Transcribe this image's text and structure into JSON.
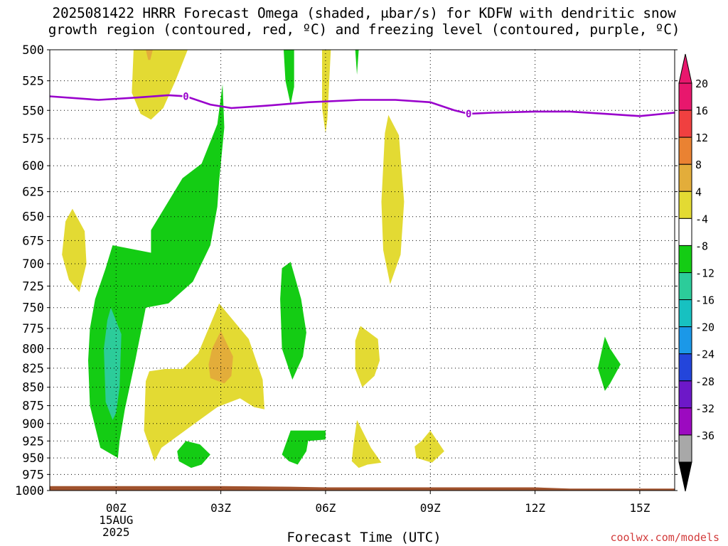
{
  "title_line1": "2025081422 HRRR Forecast Omega (shaded, μbar/s) for KDFW with dendritic snow",
  "title_line2": "growth region (contoured, red, ºC) and freezing level (contoured, purple, ºC)",
  "credit": "coolwx.com/models",
  "chart_data": {
    "type": "heatmap",
    "title": "2025081422 HRRR Forecast Omega (shaded, μbar/s) for KDFW with dendritic snow growth region (contoured, red, ºC) and freezing level (contoured, purple, ºC)",
    "xlabel": "Forecast Time (UTC)",
    "ylabel": "",
    "x_range_hours": [
      -1.9,
      16.0
    ],
    "x_ticks": [
      {
        "hour": 0,
        "label": "00Z",
        "sub": [
          "15AUG",
          "2025"
        ]
      },
      {
        "hour": 3,
        "label": "03Z"
      },
      {
        "hour": 6,
        "label": "06Z"
      },
      {
        "hour": 9,
        "label": "09Z"
      },
      {
        "hour": 12,
        "label": "12Z"
      },
      {
        "hour": 15,
        "label": "15Z"
      }
    ],
    "y_range_mb": [
      1000,
      500
    ],
    "y_ticks": [
      500,
      525,
      550,
      575,
      600,
      625,
      650,
      675,
      700,
      725,
      750,
      775,
      800,
      825,
      850,
      875,
      900,
      925,
      950,
      975,
      1000
    ],
    "y_scale": "log-pressure",
    "grid": true,
    "colorbar": {
      "labels": [
        20,
        16,
        12,
        8,
        4,
        -4,
        -8,
        -12,
        -16,
        -20,
        -24,
        -28,
        -32,
        -36
      ],
      "colors": [
        "#e8176d",
        "#f04040",
        "#ea8232",
        "#e3ad3a",
        "#e3da33",
        "#ffffff",
        "#14cc14",
        "#2ccc9a",
        "#17c1c1",
        "#1b98e8",
        "#2345db",
        "#6d18c8",
        "#9c0ac0",
        "#a8a8a8"
      ],
      "arrow_top": "#e8176d",
      "arrow_bottom": "#000000"
    },
    "freezing_level": {
      "label": "0",
      "color": "#9900cc",
      "points": [
        [
          -1.9,
          538
        ],
        [
          -0.5,
          541
        ],
        [
          0.6,
          539
        ],
        [
          1.5,
          537
        ],
        [
          2.0,
          538
        ],
        [
          2.7,
          545
        ],
        [
          3.3,
          548
        ],
        [
          4.3,
          546
        ],
        [
          5.5,
          543
        ],
        [
          7.0,
          541
        ],
        [
          8.0,
          541
        ],
        [
          9.0,
          543
        ],
        [
          9.7,
          550
        ],
        [
          10.1,
          553
        ],
        [
          10.8,
          552
        ],
        [
          12.0,
          551
        ],
        [
          13.0,
          551
        ],
        [
          14.0,
          553
        ],
        [
          15.0,
          555
        ],
        [
          16.0,
          552
        ]
      ]
    },
    "terrain": {
      "color": "#a0522d",
      "top_mb": [
        [
          -1.9,
          993
        ],
        [
          3.0,
          993
        ],
        [
          5.0,
          994
        ],
        [
          6.0,
          995
        ],
        [
          12.0,
          995
        ],
        [
          13.0,
          997
        ],
        [
          16.0,
          997
        ]
      ]
    },
    "omega_regions": [
      {
        "level": "4 to 8",
        "color": "#e3da33",
        "points": [
          [
            -1.45,
            655
          ],
          [
            -1.25,
            642
          ],
          [
            -0.9,
            665
          ],
          [
            -0.85,
            700
          ],
          [
            -1.05,
            732
          ],
          [
            -1.35,
            718
          ],
          [
            -1.55,
            690
          ]
        ]
      },
      {
        "level": "4 to 8",
        "color": "#e3da33",
        "points": [
          [
            0.5,
            500
          ],
          [
            2.05,
            500
          ],
          [
            1.7,
            525
          ],
          [
            1.35,
            548
          ],
          [
            1.0,
            558
          ],
          [
            0.7,
            553
          ],
          [
            0.45,
            535
          ]
        ]
      },
      {
        "level": "4 to 8",
        "color": "#e3da33",
        "points": [
          [
            2.95,
            745
          ],
          [
            3.8,
            788
          ],
          [
            4.2,
            840
          ],
          [
            4.25,
            880
          ],
          [
            3.95,
            877
          ],
          [
            3.55,
            865
          ],
          [
            2.9,
            877
          ],
          [
            2.25,
            900
          ],
          [
            1.3,
            935
          ],
          [
            1.1,
            955
          ],
          [
            0.8,
            910
          ],
          [
            0.85,
            842
          ],
          [
            0.95,
            829
          ],
          [
            1.4,
            826
          ],
          [
            1.9,
            826
          ],
          [
            2.35,
            806
          ]
        ]
      },
      {
        "level": "4 to 8",
        "color": "#e3da33",
        "points": [
          [
            5.9,
            500
          ],
          [
            6.15,
            500
          ],
          [
            6.05,
            558
          ],
          [
            6.0,
            570
          ],
          [
            5.9,
            548
          ]
        ]
      },
      {
        "level": "4 to 8",
        "color": "#e3da33",
        "points": [
          [
            7.8,
            554
          ],
          [
            8.1,
            572
          ],
          [
            8.25,
            635
          ],
          [
            8.15,
            690
          ],
          [
            7.85,
            723
          ],
          [
            7.65,
            685
          ],
          [
            7.6,
            635
          ],
          [
            7.7,
            570
          ]
        ]
      },
      {
        "level": "4 to 8",
        "color": "#e3da33",
        "points": [
          [
            7.0,
            772
          ],
          [
            7.5,
            788
          ],
          [
            7.55,
            815
          ],
          [
            7.4,
            835
          ],
          [
            7.05,
            850
          ],
          [
            6.85,
            826
          ],
          [
            6.85,
            790
          ]
        ]
      },
      {
        "level": "4 to 8",
        "color": "#e3da33",
        "points": [
          [
            6.9,
            895
          ],
          [
            7.3,
            935
          ],
          [
            7.6,
            957
          ],
          [
            7.2,
            960
          ],
          [
            6.95,
            965
          ],
          [
            6.75,
            955
          ],
          [
            6.8,
            930
          ]
        ]
      },
      {
        "level": "4 to 8",
        "color": "#e3da33",
        "points": [
          [
            8.75,
            925
          ],
          [
            9.0,
            910
          ],
          [
            9.4,
            940
          ],
          [
            9.05,
            957
          ],
          [
            8.6,
            950
          ],
          [
            8.55,
            933
          ]
        ]
      },
      {
        "level": "8 to 12",
        "color": "#e3ad3a",
        "points": [
          [
            3.0,
            778
          ],
          [
            3.35,
            810
          ],
          [
            3.3,
            835
          ],
          [
            3.1,
            845
          ],
          [
            2.7,
            838
          ],
          [
            2.65,
            820
          ],
          [
            2.75,
            800
          ]
        ]
      },
      {
        "level": "8 to 12",
        "color": "#e3ad3a",
        "points": [
          [
            0.85,
            500
          ],
          [
            1.05,
            500
          ],
          [
            0.98,
            508
          ],
          [
            0.92,
            508
          ]
        ]
      },
      {
        "level": "-4 to -8",
        "color": "#14cc14",
        "points": [
          [
            3.05,
            528
          ],
          [
            3.1,
            565
          ],
          [
            2.95,
            615
          ],
          [
            2.9,
            640
          ],
          [
            2.7,
            680
          ],
          [
            2.2,
            720
          ],
          [
            1.5,
            745
          ],
          [
            0.85,
            750
          ],
          [
            0.55,
            815
          ],
          [
            0.25,
            880
          ],
          [
            0.1,
            925
          ],
          [
            0.05,
            950
          ],
          [
            -0.45,
            935
          ],
          [
            -0.75,
            875
          ],
          [
            -0.8,
            815
          ],
          [
            -0.75,
            775
          ],
          [
            -0.6,
            740
          ],
          [
            -0.3,
            705
          ],
          [
            -0.1,
            680
          ],
          [
            1.0,
            688
          ],
          [
            1.0,
            664
          ],
          [
            1.9,
            612
          ],
          [
            2.45,
            598
          ],
          [
            2.9,
            562
          ]
        ]
      },
      {
        "level": "-4 to -8",
        "color": "#14cc14",
        "points": [
          [
            4.8,
            500
          ],
          [
            5.1,
            500
          ],
          [
            5.1,
            530
          ],
          [
            5.0,
            545
          ],
          [
            4.85,
            525
          ]
        ]
      },
      {
        "level": "-4 to -8",
        "color": "#14cc14",
        "points": [
          [
            6.85,
            500
          ],
          [
            6.95,
            500
          ],
          [
            6.9,
            520
          ]
        ]
      },
      {
        "level": "-4 to -8",
        "color": "#14cc14",
        "points": [
          [
            5.0,
            698
          ],
          [
            5.3,
            740
          ],
          [
            5.45,
            780
          ],
          [
            5.35,
            810
          ],
          [
            5.05,
            840
          ],
          [
            4.75,
            800
          ],
          [
            4.7,
            740
          ],
          [
            4.75,
            705
          ]
        ]
      },
      {
        "level": "-4 to -8",
        "color": "#14cc14",
        "points": [
          [
            5.0,
            910
          ],
          [
            6.0,
            910
          ],
          [
            6.0,
            923
          ],
          [
            5.5,
            925
          ],
          [
            5.45,
            940
          ],
          [
            5.2,
            960
          ],
          [
            4.95,
            955
          ],
          [
            4.75,
            945
          ]
        ]
      },
      {
        "level": "-4 to -8",
        "color": "#14cc14",
        "points": [
          [
            2.0,
            925
          ],
          [
            2.4,
            930
          ],
          [
            2.7,
            945
          ],
          [
            2.45,
            960
          ],
          [
            2.15,
            965
          ],
          [
            1.8,
            955
          ],
          [
            1.75,
            940
          ]
        ]
      },
      {
        "level": "-4 to -8",
        "color": "#14cc14",
        "points": [
          [
            14.0,
            785
          ],
          [
            14.15,
            800
          ],
          [
            14.45,
            820
          ],
          [
            14.15,
            845
          ],
          [
            14.0,
            855
          ],
          [
            13.8,
            825
          ]
        ]
      },
      {
        "level": "-8 to -12",
        "color": "#2ccc9a",
        "points": [
          [
            -0.15,
            750
          ],
          [
            0.15,
            782
          ],
          [
            0.1,
            850
          ],
          [
            0.0,
            885
          ],
          [
            -0.1,
            895
          ],
          [
            -0.3,
            870
          ],
          [
            -0.35,
            800
          ],
          [
            -0.25,
            765
          ]
        ]
      }
    ]
  }
}
